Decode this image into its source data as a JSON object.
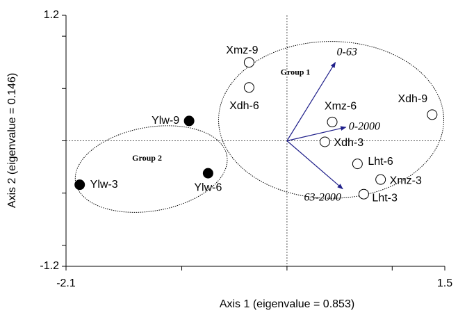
{
  "chart_data": {
    "type": "scatter",
    "x_label": "Axis 1 (eigenvalue = 0.853)",
    "y_label": "Axis 2 (eigenvalue = 0.146)",
    "xlim": [
      -2.1,
      1.5
    ],
    "ylim": [
      -1.2,
      1.2
    ],
    "xticks": [
      -2.1,
      1.5
    ],
    "yticks": [
      -1.2,
      1.2
    ],
    "xminorticks": [
      -1,
      0,
      1
    ],
    "yminorticks": [
      -1,
      -0.5,
      0,
      0.5,
      1
    ],
    "points": [
      {
        "label": "Xmz-9",
        "x": -0.36,
        "y": 0.75,
        "filled": false
      },
      {
        "label": "Xdh-6",
        "x": -0.36,
        "y": 0.51,
        "filled": false
      },
      {
        "label": "Ylw-9",
        "x": -0.93,
        "y": 0.19,
        "filled": true
      },
      {
        "label": "Ylw-6",
        "x": -0.75,
        "y": -0.31,
        "filled": true
      },
      {
        "label": "Ylw-3",
        "x": -1.97,
        "y": -0.42,
        "filled": true
      },
      {
        "label": "Xmz-6",
        "x": 0.43,
        "y": 0.18,
        "filled": false
      },
      {
        "label": "Xdh-3",
        "x": 0.36,
        "y": -0.01,
        "filled": false
      },
      {
        "label": "Lht-6",
        "x": 0.67,
        "y": -0.22,
        "filled": false
      },
      {
        "label": "Xmz-3",
        "x": 0.89,
        "y": -0.37,
        "filled": false
      },
      {
        "label": "Lht-3",
        "x": 0.73,
        "y": -0.51,
        "filled": false
      },
      {
        "label": "Xdh-9",
        "x": 1.38,
        "y": 0.25,
        "filled": false
      }
    ],
    "vectors": [
      {
        "label": "0-63",
        "x": 0.46,
        "y": 0.75
      },
      {
        "label": "0-2000",
        "x": 0.56,
        "y": 0.13
      },
      {
        "label": "63-2000",
        "x": 0.53,
        "y": -0.46
      }
    ],
    "groups": [
      {
        "label": "Group 1",
        "cx": 0.42,
        "cy": 0.2,
        "rx": 1.07,
        "ry": 0.75,
        "label_x": 0.08,
        "label_y": 0.65
      },
      {
        "label": "Group 2",
        "cx": -1.29,
        "cy": -0.27,
        "rx": 0.73,
        "ry": 0.4,
        "label_x": -1.33,
        "label_y": -0.17
      }
    ]
  }
}
